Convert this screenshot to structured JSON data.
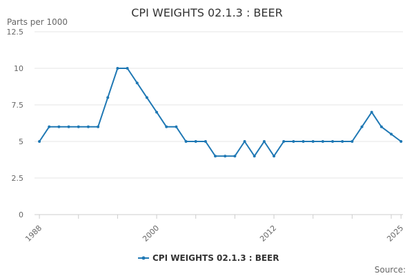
{
  "chart_data": {
    "type": "line",
    "title": "CPI WEIGHTS 02.1.3 : BEER",
    "ylabel": "Parts per 1000",
    "xlabel": "",
    "ylim": [
      0,
      12.5
    ],
    "y_ticks": [
      "0",
      "2.5",
      "5",
      "7.5",
      "10",
      "12.5"
    ],
    "y_tick_values": [
      0,
      2.5,
      5,
      7.5,
      10,
      12.5
    ],
    "x_ticks": [
      "1988",
      "2000",
      "2012",
      "2025"
    ],
    "x_tick_values": [
      1988,
      2000,
      2012,
      2025
    ],
    "grid": true,
    "legend_position": "bottom",
    "series": [
      {
        "name": "CPI WEIGHTS 02.1.3 : BEER",
        "color": "#1f78b4",
        "x": [
          1988,
          1989,
          1990,
          1991,
          1992,
          1993,
          1994,
          1995,
          1996,
          1997,
          1998,
          1999,
          2000,
          2001,
          2002,
          2003,
          2004,
          2005,
          2006,
          2007,
          2008,
          2009,
          2010,
          2011,
          2012,
          2013,
          2014,
          2015,
          2016,
          2017,
          2018,
          2019,
          2020,
          2021,
          2022,
          2023,
          2024,
          2025
        ],
        "values": [
          5,
          6,
          6,
          6,
          6,
          6,
          6,
          8,
          10,
          10,
          9,
          8,
          7,
          6,
          6,
          5,
          5,
          5,
          4,
          4,
          4,
          5,
          4,
          5,
          4,
          5,
          5,
          5,
          5,
          5,
          5,
          5,
          5,
          6,
          7,
          6,
          5.5,
          5
        ]
      }
    ]
  },
  "footer": {
    "source_label": "Source:"
  }
}
